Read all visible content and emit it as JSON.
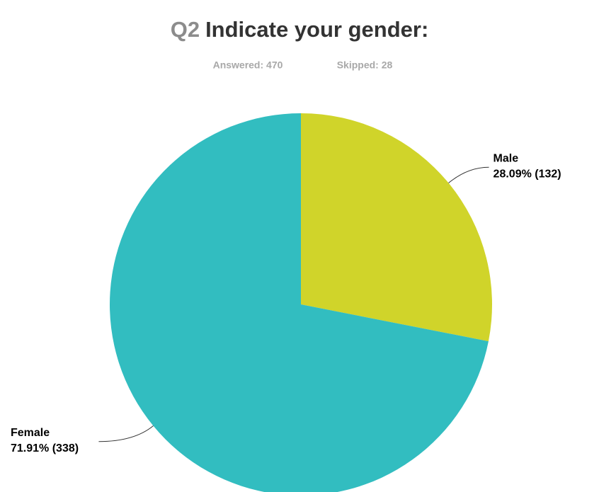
{
  "chart_data": {
    "type": "pie",
    "question_number": "Q2",
    "title": "Indicate your gender:",
    "answered": "Answered: 470",
    "skipped": "Skipped: 28",
    "categories": [
      "Male",
      "Female"
    ],
    "values": [
      28.09,
      71.91
    ],
    "value_labels": [
      "28.09% (132)",
      "71.91% (338)"
    ],
    "colors": [
      "#d0d42a",
      "#32bdc0"
    ]
  }
}
